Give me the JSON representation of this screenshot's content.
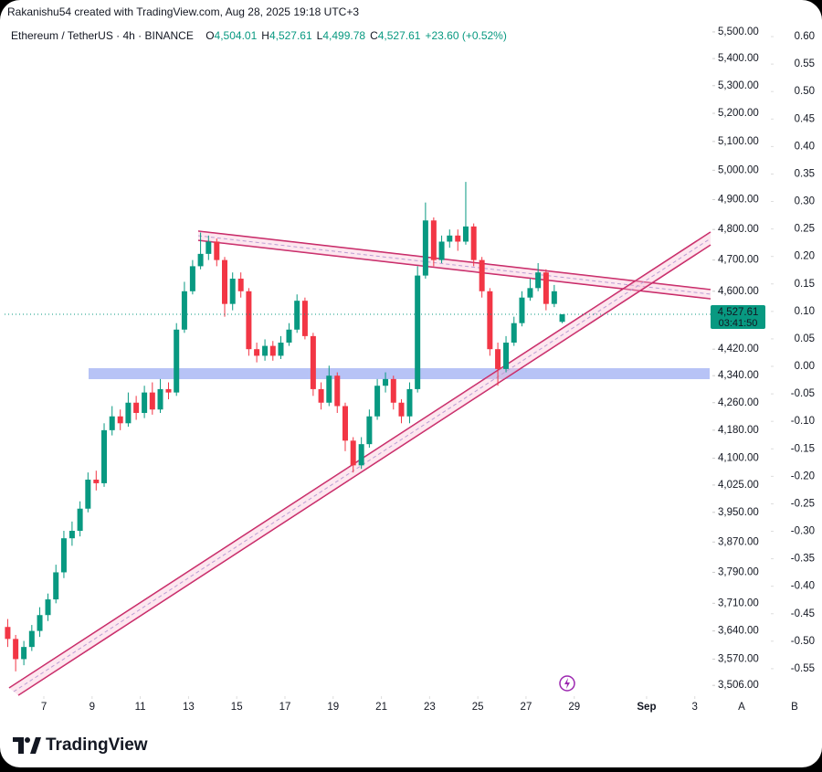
{
  "header": {
    "credit": "Rakanishu54 created with TradingView.com, Aug 28, 2025 19:18 UTC+3"
  },
  "footer": {
    "brand": "TradingView"
  },
  "chart_data": {
    "type": "candlestick",
    "legend": {
      "symbol": "Ethereum / TetherUS · 4h · BINANCE",
      "ohlc": [
        {
          "key": "O",
          "value": "4,504.01"
        },
        {
          "key": "H",
          "value": "4,527.61"
        },
        {
          "key": "L",
          "value": "4,499.78"
        },
        {
          "key": "C",
          "value": "4,527.61"
        }
      ],
      "change": "+23.60 (+0.52%)"
    },
    "last_price_label": "4,527.61",
    "countdown": "03:41:50",
    "axis_buttons": [
      "A",
      "B"
    ],
    "log_scale": true,
    "grid": false,
    "xlim": [
      5.37,
      34.73
    ],
    "xticks": [
      7,
      9,
      11,
      13,
      15,
      17,
      19,
      21,
      23,
      25,
      27,
      29,
      {
        "value": 32,
        "label": "Sep"
      },
      {
        "value": 34,
        "label": "3"
      }
    ],
    "ylim": [
      3480,
      5545
    ],
    "yticks": [
      {
        "value": 5500,
        "label": "5,500.00"
      },
      {
        "value": 5400,
        "label": "5,400.00"
      },
      {
        "value": 5300,
        "label": "5,300.00"
      },
      {
        "value": 5200,
        "label": "5,200.00"
      },
      {
        "value": 5100,
        "label": "5,100.00"
      },
      {
        "value": 5000,
        "label": "5,000.00"
      },
      {
        "value": 4900,
        "label": "4,900.00"
      },
      {
        "value": 4800,
        "label": "4,800.00"
      },
      {
        "value": 4700,
        "label": "4,700.00"
      },
      {
        "value": 4600,
        "label": "4,600.00"
      },
      {
        "value": 4420,
        "label": "4,420.00"
      },
      {
        "value": 4340,
        "label": "4,340.00"
      },
      {
        "value": 4260,
        "label": "4,260.00"
      },
      {
        "value": 4180,
        "label": "4,180.00"
      },
      {
        "value": 4100,
        "label": "4,100.00"
      },
      {
        "value": 4025,
        "label": "4,025.00"
      },
      {
        "value": 3950,
        "label": "3,950.00"
      },
      {
        "value": 3870,
        "label": "3,870.00"
      },
      {
        "value": 3790,
        "label": "3,790.00"
      },
      {
        "value": 3710,
        "label": "3,710.00"
      },
      {
        "value": 3640,
        "label": "3,640.00"
      },
      {
        "value": 3570,
        "label": "3,570.00"
      },
      {
        "value": 3506,
        "label": "3,506.00"
      }
    ],
    "y2lim": [
      -0.6,
      0.63
    ],
    "y2ticks": [
      {
        "value": 0.6,
        "label": "0.60"
      },
      {
        "value": 0.55,
        "label": "0.55"
      },
      {
        "value": 0.5,
        "label": "0.50"
      },
      {
        "value": 0.45,
        "label": "0.45"
      },
      {
        "value": 0.4,
        "label": "0.40"
      },
      {
        "value": 0.35,
        "label": "0.35"
      },
      {
        "value": 0.3,
        "label": "0.30"
      },
      {
        "value": 0.25,
        "label": "0.25"
      },
      {
        "value": 0.2,
        "label": "0.20"
      },
      {
        "value": 0.15,
        "label": "0.15"
      },
      {
        "value": 0.1,
        "label": "0.10"
      },
      {
        "value": 0.05,
        "label": "0.05"
      },
      {
        "value": 0,
        "label": "0.00"
      },
      {
        "value": -0.05,
        "label": "-0.05"
      },
      {
        "value": -0.1,
        "label": "-0.10"
      },
      {
        "value": -0.15,
        "label": "-0.15"
      },
      {
        "value": -0.2,
        "label": "-0.20"
      },
      {
        "value": -0.25,
        "label": "-0.25"
      },
      {
        "value": -0.3,
        "label": "-0.30"
      },
      {
        "value": -0.35,
        "label": "-0.35"
      },
      {
        "value": -0.4,
        "label": "-0.40"
      },
      {
        "value": -0.45,
        "label": "-0.45"
      },
      {
        "value": -0.5,
        "label": "-0.50"
      },
      {
        "value": -0.55,
        "label": "-0.55"
      }
    ],
    "up_color": "#089981",
    "down_color": "#f23645",
    "series": [
      {
        "name": "ETHUSDT",
        "x": [
          5.5,
          5.83,
          6.17,
          6.5,
          6.83,
          7.17,
          7.5,
          7.83,
          8.17,
          8.5,
          8.83,
          9.17,
          9.5,
          9.83,
          10.17,
          10.5,
          10.83,
          11.17,
          11.5,
          11.83,
          12.17,
          12.5,
          12.83,
          13.17,
          13.5,
          13.83,
          14.17,
          14.5,
          14.83,
          15.17,
          15.5,
          15.83,
          16.17,
          16.5,
          16.83,
          17.17,
          17.5,
          17.83,
          18.17,
          18.5,
          18.83,
          19.17,
          19.5,
          19.83,
          20.17,
          20.5,
          20.83,
          21.17,
          21.5,
          21.83,
          22.17,
          22.5,
          22.83,
          23.17,
          23.5,
          23.83,
          24.17,
          24.5,
          24.83,
          25.17,
          25.5,
          25.83,
          26.17,
          26.5,
          26.83,
          27.17,
          27.5,
          27.83,
          28.17,
          28.5
        ],
        "open": [
          3650,
          3620,
          3570,
          3600,
          3640,
          3680,
          3720,
          3790,
          3880,
          3900,
          3960,
          4040,
          4030,
          4180,
          4220,
          4200,
          4260,
          4230,
          4290,
          4240,
          4300,
          4290,
          4480,
          4600,
          4680,
          4720,
          4760,
          4700,
          4560,
          4640,
          4600,
          4420,
          4400,
          4430,
          4400,
          4440,
          4480,
          4570,
          4460,
          4300,
          4260,
          4340,
          4250,
          4150,
          4080,
          4140,
          4220,
          4310,
          4330,
          4260,
          4220,
          4300,
          4650,
          4830,
          4700,
          4760,
          4780,
          4760,
          4810,
          4700,
          4600,
          4420,
          4360,
          4440,
          4500,
          4580,
          4610,
          4660,
          4560,
          4504.01
        ],
        "high": [
          3670,
          3630,
          3615,
          3655,
          3700,
          3735,
          3810,
          3900,
          3925,
          3980,
          4060,
          4065,
          4200,
          4250,
          4240,
          4290,
          4280,
          4310,
          4320,
          4330,
          4320,
          4500,
          4630,
          4700,
          4790,
          4780,
          4770,
          4710,
          4660,
          4660,
          4610,
          4440,
          4450,
          4445,
          4460,
          4500,
          4590,
          4580,
          4470,
          4320,
          4370,
          4350,
          4260,
          4160,
          4160,
          4240,
          4330,
          4350,
          4340,
          4270,
          4320,
          4680,
          4890,
          4840,
          4780,
          4800,
          4800,
          4960,
          4820,
          4710,
          4610,
          4440,
          4460,
          4520,
          4600,
          4640,
          4690,
          4670,
          4620,
          4527.61
        ],
        "low": [
          3600,
          3540,
          3555,
          3590,
          3625,
          3665,
          3710,
          3775,
          3860,
          3885,
          3950,
          4010,
          4020,
          4165,
          4180,
          4190,
          4210,
          4215,
          4225,
          4230,
          4270,
          4280,
          4470,
          4590,
          4670,
          4700,
          4680,
          4520,
          4540,
          4580,
          4400,
          4380,
          4385,
          4385,
          4390,
          4430,
          4470,
          4450,
          4280,
          4240,
          4250,
          4230,
          4120,
          4060,
          4070,
          4130,
          4210,
          4290,
          4240,
          4200,
          4200,
          4290,
          4640,
          4680,
          4690,
          4740,
          4730,
          4750,
          4680,
          4580,
          4400,
          4310,
          4350,
          4430,
          4490,
          4570,
          4600,
          4540,
          4550,
          4499.78
        ],
        "close": [
          3620,
          3570,
          3600,
          3640,
          3680,
          3720,
          3790,
          3880,
          3900,
          3960,
          4040,
          4030,
          4180,
          4220,
          4200,
          4260,
          4230,
          4290,
          4240,
          4300,
          4290,
          4480,
          4600,
          4680,
          4720,
          4760,
          4700,
          4560,
          4640,
          4600,
          4420,
          4400,
          4430,
          4400,
          4440,
          4480,
          4570,
          4460,
          4300,
          4260,
          4340,
          4250,
          4150,
          4080,
          4140,
          4220,
          4310,
          4330,
          4260,
          4220,
          4300,
          4650,
          4830,
          4700,
          4760,
          4780,
          4760,
          4810,
          4700,
          4600,
          4420,
          4360,
          4440,
          4500,
          4580,
          4610,
          4660,
          4560,
          4600,
          4527.61
        ]
      }
    ]
  }
}
